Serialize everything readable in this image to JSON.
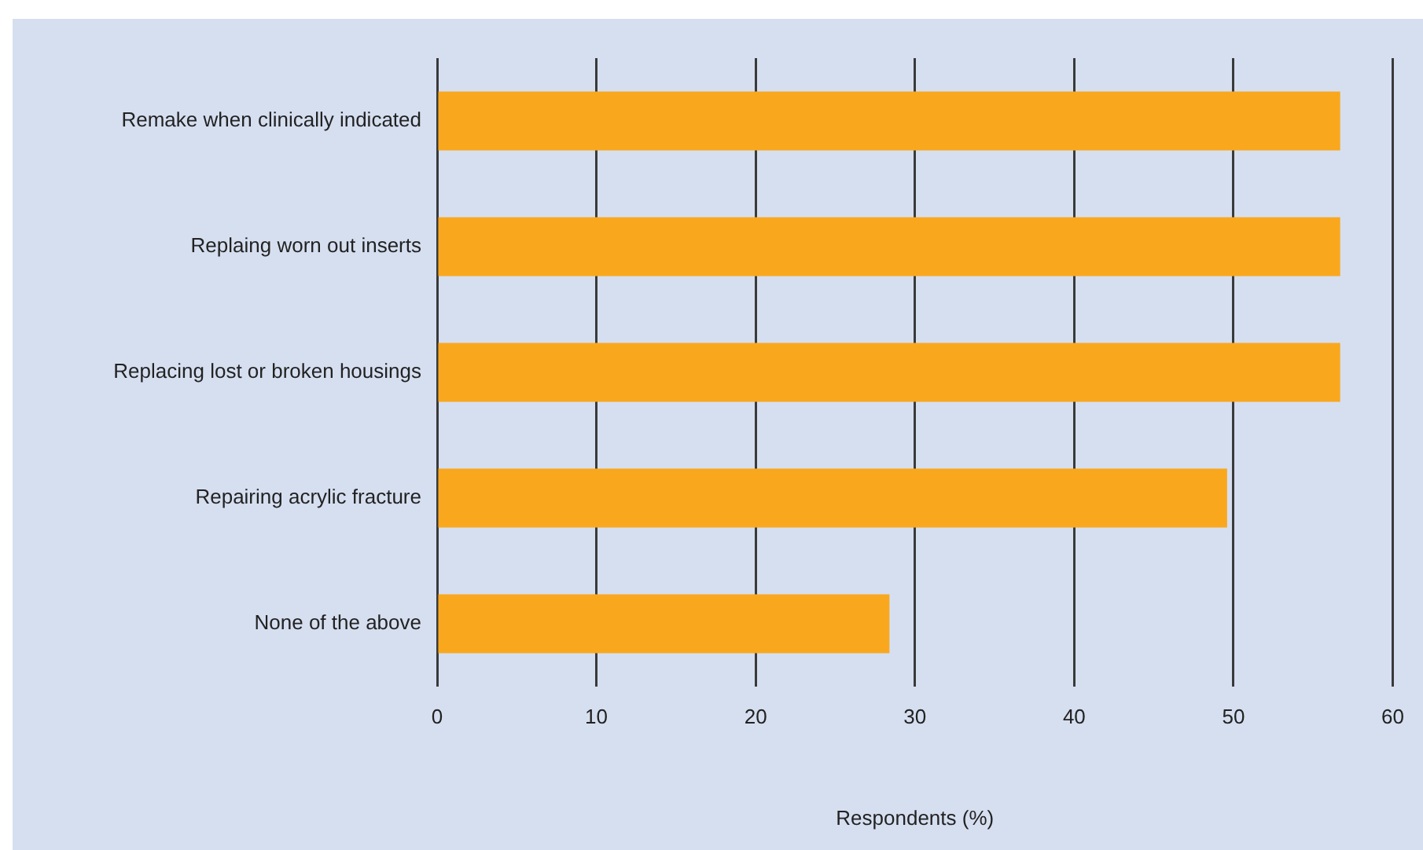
{
  "chart_data": {
    "type": "bar",
    "orientation": "horizontal",
    "xlabel": "Respondents (%)",
    "categories": [
      "Remake when clinically indicated",
      "Replaing worn out inserts",
      "Replacing lost or broken housings",
      "Repairing acrylic fracture",
      "None of the above"
    ],
    "values": [
      56.7,
      56.7,
      56.7,
      49.6,
      28.4
    ],
    "color": "#f9a81e",
    "xlim": [
      0,
      60
    ],
    "xticks": [
      0,
      10,
      20,
      30,
      40,
      50,
      60
    ],
    "grid": "x",
    "legend": false
  }
}
